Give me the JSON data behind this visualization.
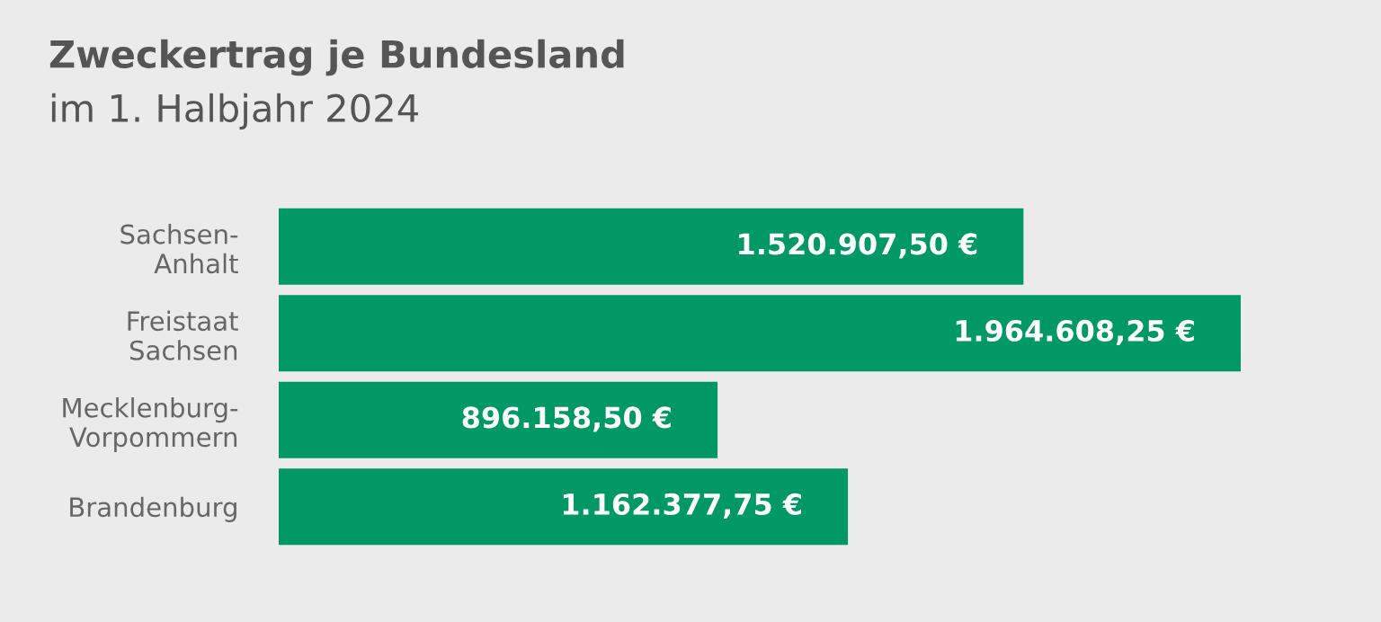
{
  "chart_data": {
    "type": "bar",
    "orientation": "horizontal",
    "title": "Zweckertrag je Bundesland",
    "subtitle": "im 1. Halbjahr 2024",
    "categories": [
      "Sachsen-\nAnhalt",
      "Freistaat\nSachsen",
      "Mecklenburg-\nVorpommern",
      "Brandenburg"
    ],
    "values": [
      1520907.5,
      1964608.25,
      896158.5,
      1162377.75
    ],
    "value_labels": [
      "1.520.907,50 €",
      "1.964.608,25 €",
      "896.158,50 €",
      "1.162.377,75 €"
    ],
    "color": "#009966",
    "tick_labels": "y",
    "grid": false,
    "legend": false
  }
}
